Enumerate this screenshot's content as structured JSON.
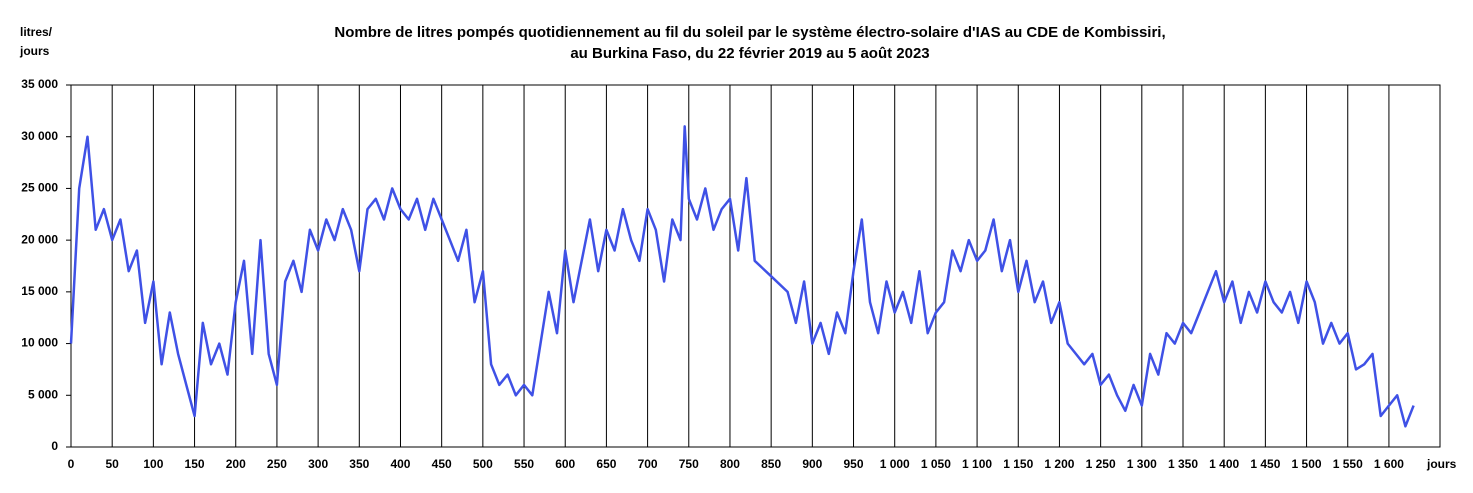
{
  "chart_data": {
    "type": "line",
    "title": [
      "Nombre de litres pompés quotidiennement au fil du soleil par le système électro-solaire d'IAS au CDE de Kombissiri,",
      "au Burkina Faso, du 22 février 2019 au 5 août 2023"
    ],
    "y_label": [
      "litres/",
      "jours"
    ],
    "x_label": "jours",
    "color": "#3f51e6",
    "grid": "vertical",
    "xlim": [
      0,
      1662
    ],
    "ylim": [
      0,
      35000
    ],
    "yticks": [
      0,
      {
        "value": 5000,
        "label": "5 000"
      },
      {
        "value": 10000,
        "label": "10 000"
      },
      {
        "value": 15000,
        "label": "15 000"
      },
      {
        "value": 20000,
        "label": "20 000"
      },
      {
        "value": 25000,
        "label": "25 000"
      },
      {
        "value": 30000,
        "label": "30 000"
      },
      {
        "value": 35000,
        "label": "35 000"
      }
    ],
    "xticks": [
      0,
      50,
      100,
      150,
      200,
      250,
      300,
      350,
      400,
      450,
      500,
      550,
      600,
      650,
      700,
      750,
      800,
      850,
      900,
      950,
      {
        "value": 1000,
        "label": "1 000"
      },
      {
        "value": 1050,
        "label": "1 050"
      },
      {
        "value": 1100,
        "label": "1 100"
      },
      {
        "value": 1150,
        "label": "1 150"
      },
      {
        "value": 1200,
        "label": "1 200"
      },
      {
        "value": 1250,
        "label": "1 250"
      },
      {
        "value": 1300,
        "label": "1 300"
      },
      {
        "value": 1350,
        "label": "1 350"
      },
      {
        "value": 1400,
        "label": "1 400"
      },
      {
        "value": 1450,
        "label": "1 450"
      },
      {
        "value": 1500,
        "label": "1 500"
      },
      {
        "value": 1550,
        "label": "1 550"
      },
      {
        "value": 1600,
        "label": "1 600"
      }
    ],
    "x": [
      0,
      10,
      20,
      30,
      40,
      50,
      60,
      70,
      80,
      90,
      100,
      110,
      120,
      130,
      140,
      150,
      160,
      170,
      180,
      190,
      200,
      210,
      220,
      230,
      240,
      250,
      260,
      270,
      280,
      290,
      300,
      310,
      320,
      330,
      340,
      350,
      360,
      370,
      380,
      390,
      400,
      410,
      420,
      430,
      440,
      450,
      460,
      470,
      480,
      490,
      500,
      510,
      520,
      530,
      540,
      550,
      560,
      570,
      580,
      590,
      600,
      610,
      620,
      630,
      640,
      650,
      660,
      670,
      680,
      690,
      700,
      710,
      720,
      730,
      740,
      745,
      750,
      760,
      770,
      780,
      790,
      800,
      810,
      820,
      830,
      850,
      870,
      880,
      890,
      900,
      910,
      920,
      930,
      940,
      950,
      960,
      970,
      980,
      990,
      1000,
      1010,
      1020,
      1030,
      1040,
      1050,
      1060,
      1070,
      1080,
      1090,
      1100,
      1110,
      1120,
      1130,
      1140,
      1150,
      1160,
      1170,
      1180,
      1190,
      1200,
      1210,
      1220,
      1230,
      1240,
      1250,
      1260,
      1270,
      1280,
      1290,
      1300,
      1310,
      1320,
      1330,
      1340,
      1350,
      1360,
      1370,
      1380,
      1390,
      1400,
      1410,
      1420,
      1430,
      1440,
      1450,
      1460,
      1470,
      1480,
      1490,
      1500,
      1510,
      1520,
      1530,
      1540,
      1550,
      1560,
      1570,
      1580,
      1590,
      1600,
      1610,
      1620,
      1630
    ],
    "values": [
      10000,
      25000,
      30000,
      21000,
      23000,
      20000,
      22000,
      17000,
      19000,
      12000,
      16000,
      8000,
      13000,
      9000,
      6000,
      3000,
      12000,
      8000,
      10000,
      7000,
      14000,
      18000,
      9000,
      20000,
      9000,
      6000,
      16000,
      18000,
      15000,
      21000,
      19000,
      22000,
      20000,
      23000,
      21000,
      17000,
      23000,
      24000,
      22000,
      25000,
      23000,
      22000,
      24000,
      21000,
      24000,
      22000,
      20000,
      18000,
      21000,
      14000,
      17000,
      8000,
      6000,
      7000,
      5000,
      6000,
      5000,
      10000,
      15000,
      11000,
      19000,
      14000,
      18000,
      22000,
      17000,
      21000,
      19000,
      23000,
      20000,
      18000,
      23000,
      21000,
      16000,
      22000,
      20000,
      31000,
      24000,
      22000,
      25000,
      21000,
      23000,
      24000,
      19000,
      26000,
      18000,
      16500,
      15000,
      12000,
      16000,
      10000,
      12000,
      9000,
      13000,
      11000,
      17000,
      22000,
      14000,
      11000,
      16000,
      13000,
      15000,
      12000,
      17000,
      11000,
      13000,
      14000,
      19000,
      17000,
      20000,
      18000,
      19000,
      22000,
      17000,
      20000,
      15000,
      18000,
      14000,
      16000,
      12000,
      14000,
      10000,
      9000,
      8000,
      9000,
      6000,
      7000,
      5000,
      3500,
      6000,
      4000,
      9000,
      7000,
      11000,
      10000,
      12000,
      11000,
      13000,
      15000,
      17000,
      14000,
      16000,
      12000,
      15000,
      13000,
      16000,
      14000,
      13000,
      15000,
      12000,
      16000,
      14000,
      10000,
      12000,
      10000,
      11000,
      7500,
      8000,
      9000,
      3000,
      4000,
      5000,
      2000,
      4000
    ]
  }
}
